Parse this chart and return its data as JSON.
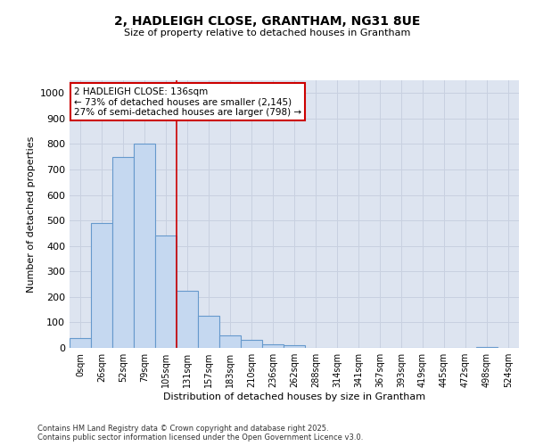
{
  "title": "2, HADLEIGH CLOSE, GRANTHAM, NG31 8UE",
  "subtitle": "Size of property relative to detached houses in Grantham",
  "xlabel": "Distribution of detached houses by size in Grantham",
  "ylabel": "Number of detached properties",
  "bin_labels": [
    "0sqm",
    "26sqm",
    "52sqm",
    "79sqm",
    "105sqm",
    "131sqm",
    "157sqm",
    "183sqm",
    "210sqm",
    "236sqm",
    "262sqm",
    "288sqm",
    "314sqm",
    "341sqm",
    "367sqm",
    "393sqm",
    "419sqm",
    "445sqm",
    "472sqm",
    "498sqm",
    "524sqm"
  ],
  "bar_heights": [
    40,
    490,
    750,
    800,
    440,
    225,
    125,
    50,
    30,
    15,
    10,
    0,
    0,
    0,
    0,
    0,
    0,
    0,
    0,
    5,
    0
  ],
  "bar_color": "#c5d8f0",
  "bar_edge_color": "#6699cc",
  "bar_edge_width": 0.8,
  "vline_x": 5,
  "vline_color": "#cc0000",
  "annotation_line1": "2 HADLEIGH CLOSE: 136sqm",
  "annotation_line2": "← 73% of detached houses are smaller (2,145)",
  "annotation_line3": "27% of semi-detached houses are larger (798) →",
  "annotation_box_color": "#cc0000",
  "ylim": [
    0,
    1050
  ],
  "yticks": [
    0,
    100,
    200,
    300,
    400,
    500,
    600,
    700,
    800,
    900,
    1000
  ],
  "grid_color": "#c8d0e0",
  "bg_color": "#dde4f0",
  "footer_line1": "Contains HM Land Registry data © Crown copyright and database right 2025.",
  "footer_line2": "Contains public sector information licensed under the Open Government Licence v3.0."
}
